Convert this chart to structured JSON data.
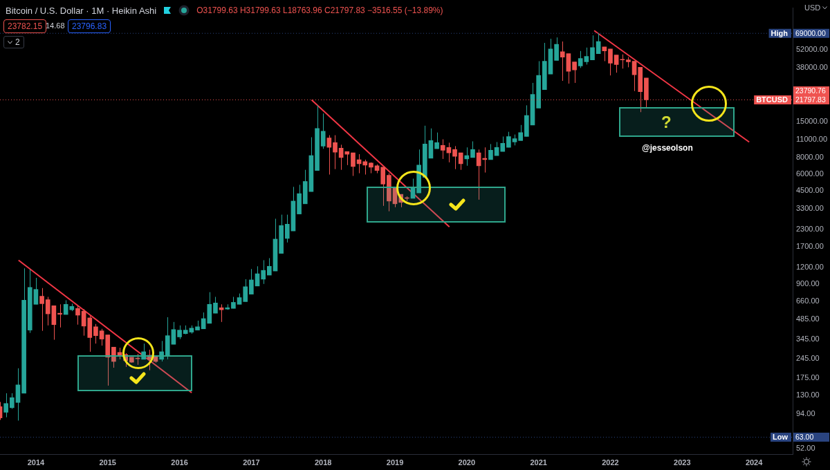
{
  "chart_data": {
    "type": "candlestick",
    "title": "Bitcoin / U.S. Dollar · 1M · Heikin Ashi",
    "log": "y",
    "xlim": [
      "2013-07-01",
      "2024-07-15"
    ],
    "xticks": [
      "2014",
      "2015",
      "2016",
      "2017",
      "2018",
      "2019",
      "2020",
      "2021",
      "2022",
      "2023",
      "2024"
    ],
    "ylim": [
      47,
      107000
    ],
    "yticks": [
      {
        "value": 52000,
        "label": "52000.00"
      },
      {
        "value": 38000,
        "label": "38000.00"
      },
      {
        "value": 15000,
        "label": "15000.00"
      },
      {
        "value": 11000,
        "label": "11000.00"
      },
      {
        "value": 8000,
        "label": "8000.00"
      },
      {
        "value": 6000,
        "label": "6000.00"
      },
      {
        "value": 4500,
        "label": "4500.00"
      },
      {
        "value": 3300,
        "label": "3300.00"
      },
      {
        "value": 2300,
        "label": "2300.00"
      },
      {
        "value": 1700,
        "label": "1700.00"
      },
      {
        "value": 1200,
        "label": "1200.00"
      },
      {
        "value": 900,
        "label": "900.00"
      },
      {
        "value": 660,
        "label": "660.00"
      },
      {
        "value": 485,
        "label": "485.00"
      },
      {
        "value": 345,
        "label": "345.00"
      },
      {
        "value": 245,
        "label": "245.00"
      },
      {
        "value": 175,
        "label": "175.00"
      },
      {
        "value": 130,
        "label": "130.00"
      },
      {
        "value": 94,
        "label": "94.00"
      },
      {
        "value": 52,
        "label": "52.00"
      }
    ],
    "series": [
      {
        "x": [
          "2013-07",
          "2013-08",
          "2013-09",
          "2013-10",
          "2013-11",
          "2013-12",
          "2014-01",
          "2014-02",
          "2014-03",
          "2014-04",
          "2014-05",
          "2014-06",
          "2014-07",
          "2014-08",
          "2014-09",
          "2014-10",
          "2014-11",
          "2014-12",
          "2015-01",
          "2015-02",
          "2015-03",
          "2015-04",
          "2015-05",
          "2015-06",
          "2015-07",
          "2015-08",
          "2015-09",
          "2015-10",
          "2015-11",
          "2015-12",
          "2016-01",
          "2016-02",
          "2016-03",
          "2016-04",
          "2016-05",
          "2016-06",
          "2016-07",
          "2016-08",
          "2016-09",
          "2016-10",
          "2016-11",
          "2016-12",
          "2017-01",
          "2017-02",
          "2017-03",
          "2017-04",
          "2017-05",
          "2017-06",
          "2017-07",
          "2017-08",
          "2017-09",
          "2017-10",
          "2017-11",
          "2017-12",
          "2018-01",
          "2018-02",
          "2018-03",
          "2018-04",
          "2018-05",
          "2018-06",
          "2018-07",
          "2018-08",
          "2018-09",
          "2018-10",
          "2018-11",
          "2018-12",
          "2019-01",
          "2019-02",
          "2019-03",
          "2019-04",
          "2019-05",
          "2019-06",
          "2019-07",
          "2019-08",
          "2019-09",
          "2019-10",
          "2019-11",
          "2019-12",
          "2020-01",
          "2020-02",
          "2020-03",
          "2020-04",
          "2020-05",
          "2020-06",
          "2020-07",
          "2020-08",
          "2020-09",
          "2020-10",
          "2020-11",
          "2020-12",
          "2021-01",
          "2021-02",
          "2021-03",
          "2021-04",
          "2021-05",
          "2021-06",
          "2021-07",
          "2021-08",
          "2021-09",
          "2021-10",
          "2021-11",
          "2021-12",
          "2022-01",
          "2022-02",
          "2022-03",
          "2022-04",
          "2022-05",
          "2022-06",
          "2022-07"
        ],
        "ohlc": [
          [
            107,
            116,
            85,
            88
          ],
          [
            97,
            135,
            89,
            113
          ],
          [
            105,
            135,
            103,
            125
          ],
          [
            115,
            208,
            84,
            156
          ],
          [
            135,
            1175,
            135,
            676
          ],
          [
            403,
            1150,
            384,
            845
          ],
          [
            630,
            997,
            630,
            816
          ],
          [
            725,
            835,
            398,
            637
          ],
          [
            683,
            717,
            437,
            534
          ],
          [
            615,
            615,
            341,
            443
          ],
          [
            540,
            630,
            422,
            530
          ],
          [
            528,
            676,
            528,
            630
          ],
          [
            573,
            637,
            560,
            608
          ],
          [
            587,
            615,
            443,
            522
          ],
          [
            560,
            580,
            366,
            432
          ],
          [
            498,
            515,
            277,
            354
          ],
          [
            427,
            448,
            319,
            366
          ],
          [
            398,
            412,
            308,
            345
          ],
          [
            371,
            371,
            154,
            252
          ],
          [
            300,
            300,
            210,
            234
          ],
          [
            274,
            297,
            243,
            258
          ],
          [
            264,
            270,
            213,
            237
          ],
          [
            252,
            252,
            229,
            231
          ],
          [
            247,
            267,
            221,
            245
          ],
          [
            243,
            319,
            243,
            277
          ],
          [
            261,
            287,
            201,
            243
          ],
          [
            255,
            255,
            229,
            234
          ],
          [
            243,
            334,
            234,
            277
          ],
          [
            261,
            504,
            243,
            366
          ],
          [
            315,
            464,
            315,
            407
          ],
          [
            358,
            437,
            345,
            403
          ],
          [
            379,
            437,
            375,
            403
          ],
          [
            389,
            437,
            379,
            417
          ],
          [
            403,
            475,
            403,
            427
          ],
          [
            412,
            547,
            412,
            492
          ],
          [
            453,
            778,
            453,
            630
          ],
          [
            540,
            717,
            540,
            645
          ],
          [
            594,
            630,
            464,
            573
          ],
          [
            580,
            630,
            573,
            594
          ],
          [
            587,
            717,
            587,
            652
          ],
          [
            630,
            760,
            630,
            708
          ],
          [
            660,
            974,
            660,
            855
          ],
          [
            751,
            1162,
            751,
            962
          ],
          [
            865,
            1218,
            865,
            1070
          ],
          [
            974,
            1354,
            897,
            1135
          ],
          [
            1045,
            1403,
            1045,
            1218
          ],
          [
            1122,
            2776,
            1122,
            1951
          ],
          [
            1523,
            2980,
            1523,
            2468
          ],
          [
            1974,
            2980,
            1840,
            2527
          ],
          [
            2247,
            4825,
            2247,
            3771
          ],
          [
            3014,
            5000,
            3014,
            4290
          ],
          [
            3597,
            6480,
            3597,
            5300
          ],
          [
            4445,
            11400,
            4445,
            8300
          ],
          [
            6400,
            19800,
            6400,
            13280
          ],
          [
            9775,
            17200,
            9330,
            12670
          ],
          [
            11260,
            11810,
            5970,
            9560
          ],
          [
            10370,
            11810,
            6560,
            8800
          ],
          [
            9440,
            10010,
            6480,
            8010
          ],
          [
            8900,
            8900,
            7035,
            8500
          ],
          [
            8700,
            8700,
            5830,
            6870
          ],
          [
            7730,
            8500,
            6110,
            7205
          ],
          [
            7465,
            7730,
            5970,
            7035
          ],
          [
            7290,
            7377,
            6110,
            6790
          ],
          [
            6955,
            7120,
            6110,
            6406
          ],
          [
            6790,
            6790,
            3471,
            5060
          ],
          [
            5900,
            6110,
            3160,
            3771
          ],
          [
            4825,
            4825,
            3390,
            3597
          ],
          [
            4240,
            4240,
            3390,
            3684
          ],
          [
            3960,
            4094,
            3771,
            3950
          ],
          [
            3953,
            5560,
            3953,
            4770
          ],
          [
            4343,
            9220,
            4343,
            7035
          ],
          [
            5690,
            13925,
            5690,
            10130
          ],
          [
            7914,
            13280,
            7914,
            10750
          ],
          [
            9334,
            12370,
            9334,
            10370
          ],
          [
            9897,
            11000,
            7826,
            9107
          ],
          [
            9560,
            10370,
            7377,
            8695
          ],
          [
            9220,
            9775,
            6560,
            8199
          ],
          [
            8695,
            8695,
            6480,
            7205
          ],
          [
            7826,
            9560,
            6955,
            8299
          ],
          [
            8010,
            10616,
            8010,
            9220
          ],
          [
            8695,
            9220,
            3862,
            6955
          ],
          [
            7914,
            9560,
            6184,
            7730
          ],
          [
            7730,
            10130,
            7730,
            9107
          ],
          [
            8299,
            10490,
            8299,
            9560
          ],
          [
            8900,
            11540,
            8900,
            10250
          ],
          [
            9560,
            12525,
            9560,
            11540
          ],
          [
            10490,
            11950,
            9897,
            11140
          ],
          [
            10750,
            14100,
            10750,
            12370
          ],
          [
            11540,
            19820,
            11540,
            16620
          ],
          [
            14100,
            29230,
            14100,
            23930
          ],
          [
            18900,
            42600,
            18900,
            33270
          ],
          [
            25980,
            58490,
            25980,
            42600
          ],
          [
            34060,
            62800,
            34060,
            52650
          ],
          [
            43100,
            64270,
            43100,
            57130
          ],
          [
            50230,
            59910,
            30280,
            45720
          ],
          [
            48490,
            48490,
            28880,
            35710
          ],
          [
            42100,
            42100,
            29230,
            36560
          ],
          [
            39230,
            50800,
            37860,
            44650
          ],
          [
            42100,
            53910,
            40140,
            46240
          ],
          [
            43600,
            66600,
            43600,
            53910
          ],
          [
            48490,
            69000,
            48490,
            59910
          ],
          [
            54550,
            54550,
            42600,
            50800
          ],
          [
            52650,
            52650,
            33270,
            41100
          ],
          [
            47360,
            47360,
            34890,
            40140
          ],
          [
            43700,
            47920,
            37440,
            43500
          ],
          [
            43600,
            45720,
            38310,
            42100
          ],
          [
            42600,
            42600,
            25380,
            33670
          ],
          [
            38310,
            38310,
            17610,
            25070
          ],
          [
            31799.63,
            31799.63,
            18763.96,
            21797.83
          ]
        ],
        "colors": [
          "#ef5350",
          "#26a69a",
          "#26a69a",
          "#26a69a",
          "#26a69a",
          "#26a69a",
          "#26a69a",
          "#ef5350",
          "#ef5350",
          "#ef5350",
          "#ef5350",
          "#26a69a",
          "#26a69a",
          "#ef5350",
          "#ef5350",
          "#ef5350",
          "#ef5350",
          "#ef5350",
          "#ef5350",
          "#ef5350",
          "#ef5350",
          "#ef5350",
          "#ef5350",
          "#ef5350",
          "#26a69a",
          "#ef5350",
          "#ef5350",
          "#26a69a",
          "#26a69a",
          "#26a69a",
          "#26a69a",
          "#26a69a",
          "#26a69a",
          "#26a69a",
          "#26a69a",
          "#26a69a",
          "#26a69a",
          "#ef5350",
          "#26a69a",
          "#26a69a",
          "#26a69a",
          "#26a69a",
          "#26a69a",
          "#26a69a",
          "#26a69a",
          "#26a69a",
          "#26a69a",
          "#26a69a",
          "#26a69a",
          "#26a69a",
          "#26a69a",
          "#26a69a",
          "#26a69a",
          "#26a69a",
          "#26a69a",
          "#ef5350",
          "#ef5350",
          "#ef5350",
          "#ef5350",
          "#ef5350",
          "#ef5350",
          "#ef5350",
          "#ef5350",
          "#ef5350",
          "#ef5350",
          "#ef5350",
          "#ef5350",
          "#ef5350",
          "#ef5350",
          "#26a69a",
          "#26a69a",
          "#26a69a",
          "#26a69a",
          "#26a69a",
          "#ef5350",
          "#ef5350",
          "#ef5350",
          "#ef5350",
          "#26a69a",
          "#26a69a",
          "#ef5350",
          "#ef5350",
          "#26a69a",
          "#26a69a",
          "#26a69a",
          "#26a69a",
          "#26a69a",
          "#26a69a",
          "#26a69a",
          "#26a69a",
          "#26a69a",
          "#26a69a",
          "#26a69a",
          "#26a69a",
          "#ef5350",
          "#ef5350",
          "#ef5350",
          "#26a69a",
          "#26a69a",
          "#26a69a",
          "#26a69a",
          "#ef5350",
          "#ef5350",
          "#ef5350",
          "#ef5350",
          "#ef5350",
          "#ef5350",
          "#ef5350",
          "#ef5350"
        ]
      },
      {
        "type": "line",
        "x": [
          "2013-10-04",
          "2016-03-02"
        ],
        "values": [
          1354,
          136
        ],
        "color": "#f23645"
      },
      {
        "type": "line",
        "x": [
          "2017-11-03",
          "2019-10-04"
        ],
        "values": [
          21780,
          2411
        ],
        "color": "#f23645"
      },
      {
        "type": "line",
        "x": [
          "2021-10-10",
          "2023-12-07"
        ],
        "values": [
          72340,
          10490
        ],
        "color": "#f23645"
      }
    ],
    "ref_lines": [
      {
        "axis": "y",
        "value": 69000,
        "label": "High",
        "color": "#2a4480",
        "line_style": "dotted"
      },
      {
        "axis": "y",
        "value": 63,
        "label": "Low",
        "color": "#2a4480",
        "line_style": "dotted"
      },
      {
        "axis": "y",
        "value": 21797.83,
        "label": "BTCUSD",
        "color": "#ef5350",
        "line_style": "dotted"
      }
    ],
    "annotations": [
      "O31799.63 H31799.63 L18763.96 C21797.83 −3516.55 (−13.89%)",
      "23782.15",
      "14.68",
      "23796.83",
      "2",
      "USD",
      "?",
      "@jesseolson",
      "69000.00",
      "63.00",
      "21797.83",
      "23790.76"
    ]
  }
}
